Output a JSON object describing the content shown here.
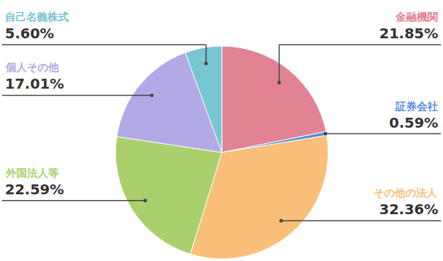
{
  "chart_data": {
    "type": "pie",
    "categories": [
      "金融機関",
      "証券会社",
      "その他の法人",
      "外国法人等",
      "個人その他",
      "自己名義株式"
    ],
    "values": [
      21.85,
      0.59,
      32.36,
      22.59,
      17.01,
      5.6
    ],
    "value_labels": [
      "21.85%",
      "0.59%",
      "32.36%",
      "22.59%",
      "17.01%",
      "5.60%"
    ],
    "colors": [
      "#e28394",
      "#5b8fd6",
      "#f9bf78",
      "#a9d06c",
      "#b1aae6",
      "#77c6d2"
    ],
    "data_labels": true
  }
}
